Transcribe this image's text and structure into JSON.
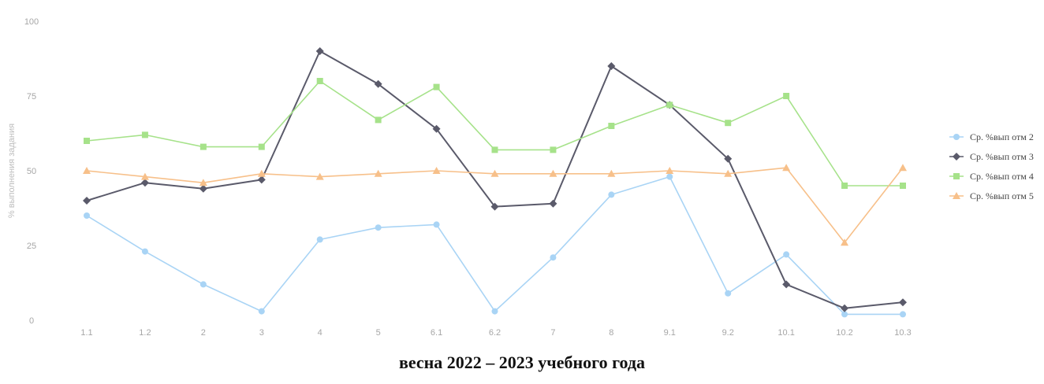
{
  "caption": "весна 2022 – 2023 учебного года",
  "chart_data": {
    "type": "line",
    "title": "",
    "ylabel": "% выполнения задания",
    "xlabel": "",
    "ylim": [
      0,
      100
    ],
    "yticks": [
      0,
      25,
      50,
      75,
      100
    ],
    "grid": false,
    "legend_position": "right",
    "categories": [
      "1.1",
      "1.2",
      "2",
      "3",
      "4",
      "5",
      "6.1",
      "6.2",
      "7",
      "8",
      "9.1",
      "9.2",
      "10.1",
      "10.2",
      "10.3"
    ],
    "series": [
      {
        "name": "Ср. %вып отм 2",
        "color": "#a9d4f5",
        "marker": "circle",
        "values": [
          35,
          23,
          12,
          3,
          27,
          31,
          32,
          3,
          21,
          42,
          48,
          9,
          22,
          2,
          2
        ]
      },
      {
        "name": "Ср. %вып отм 3",
        "color": "#5a5a6a",
        "marker": "diamond",
        "values": [
          40,
          46,
          44,
          47,
          90,
          79,
          64,
          38,
          39,
          85,
          72,
          54,
          12,
          4,
          6
        ]
      },
      {
        "name": "Ср. %вып отм 4",
        "color": "#a6e28a",
        "marker": "square",
        "values": [
          60,
          62,
          58,
          58,
          80,
          67,
          78,
          57,
          57,
          65,
          72,
          66,
          75,
          45,
          45
        ]
      },
      {
        "name": "Ср. %вып отм 5",
        "color": "#f7c08a",
        "marker": "triangle",
        "values": [
          50,
          48,
          46,
          49,
          48,
          49,
          50,
          49,
          49,
          49,
          50,
          49,
          51,
          26,
          51
        ]
      }
    ]
  }
}
